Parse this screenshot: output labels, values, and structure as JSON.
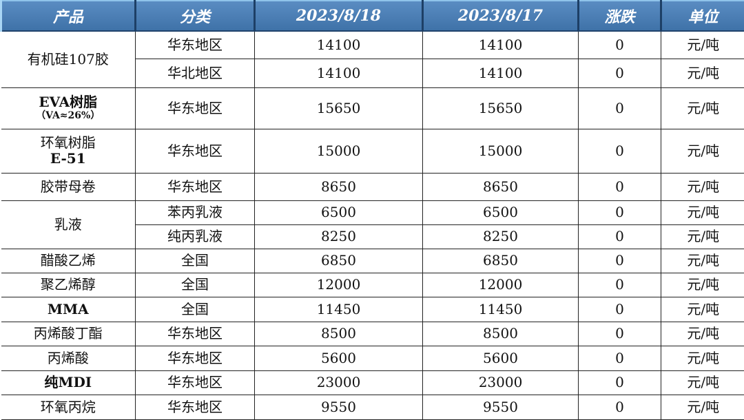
{
  "header": [
    "产品",
    "分类",
    "2023/8/18",
    "2023/8/17",
    "涨跌",
    "单位"
  ],
  "colors": {
    "header_bg": "#4a7eb5",
    "header_text": "#ffffff"
  },
  "products": [
    {
      "name": "有机硅107胶",
      "rows": [
        [
          "华东地区",
          "14100",
          "14100",
          "0",
          "元/吨"
        ],
        [
          "华北地区",
          "14100",
          "14100",
          "0",
          "元/吨"
        ]
      ]
    },
    {
      "name": "EVA树脂",
      "note": "（VA≈26%）",
      "rows": [
        [
          "华东地区",
          "15650",
          "15650",
          "0",
          "元/吨"
        ]
      ]
    },
    {
      "name": "环氧树脂",
      "name2": "E-51",
      "rows": [
        [
          "华东地区",
          "15000",
          "15000",
          "0",
          "元/吨"
        ]
      ]
    },
    {
      "name": "胶带母卷",
      "rows": [
        [
          "华东地区",
          "8650",
          "8650",
          "0",
          "元/吨"
        ]
      ]
    },
    {
      "name": "乳液",
      "rows": [
        [
          "苯丙乳液",
          "6500",
          "6500",
          "0",
          "元/吨"
        ],
        [
          "纯丙乳液",
          "8250",
          "8250",
          "0",
          "元/吨"
        ]
      ]
    },
    {
      "name": "醋酸乙烯",
      "rows": [
        [
          "全国",
          "6850",
          "6850",
          "0",
          "元/吨"
        ]
      ]
    },
    {
      "name": "聚乙烯醇",
      "rows": [
        [
          "全国",
          "12000",
          "12000",
          "0",
          "元/吨"
        ]
      ]
    },
    {
      "name": "MMA",
      "rows": [
        [
          "全国",
          "11450",
          "11450",
          "0",
          "元/吨"
        ]
      ]
    },
    {
      "name": "丙烯酸丁酯",
      "rows": [
        [
          "华东地区",
          "8500",
          "8500",
          "0",
          "元/吨"
        ]
      ]
    },
    {
      "name": "丙烯酸",
      "rows": [
        [
          "华东地区",
          "5600",
          "5600",
          "0",
          "元/吨"
        ]
      ]
    },
    {
      "name": "纯MDI",
      "rows": [
        [
          "华东地区",
          "23000",
          "23000",
          "0",
          "元/吨"
        ]
      ]
    },
    {
      "name": "环氧丙烷",
      "rows": [
        [
          "华东地区",
          "9550",
          "9550",
          "0",
          "元/吨"
        ]
      ]
    }
  ]
}
